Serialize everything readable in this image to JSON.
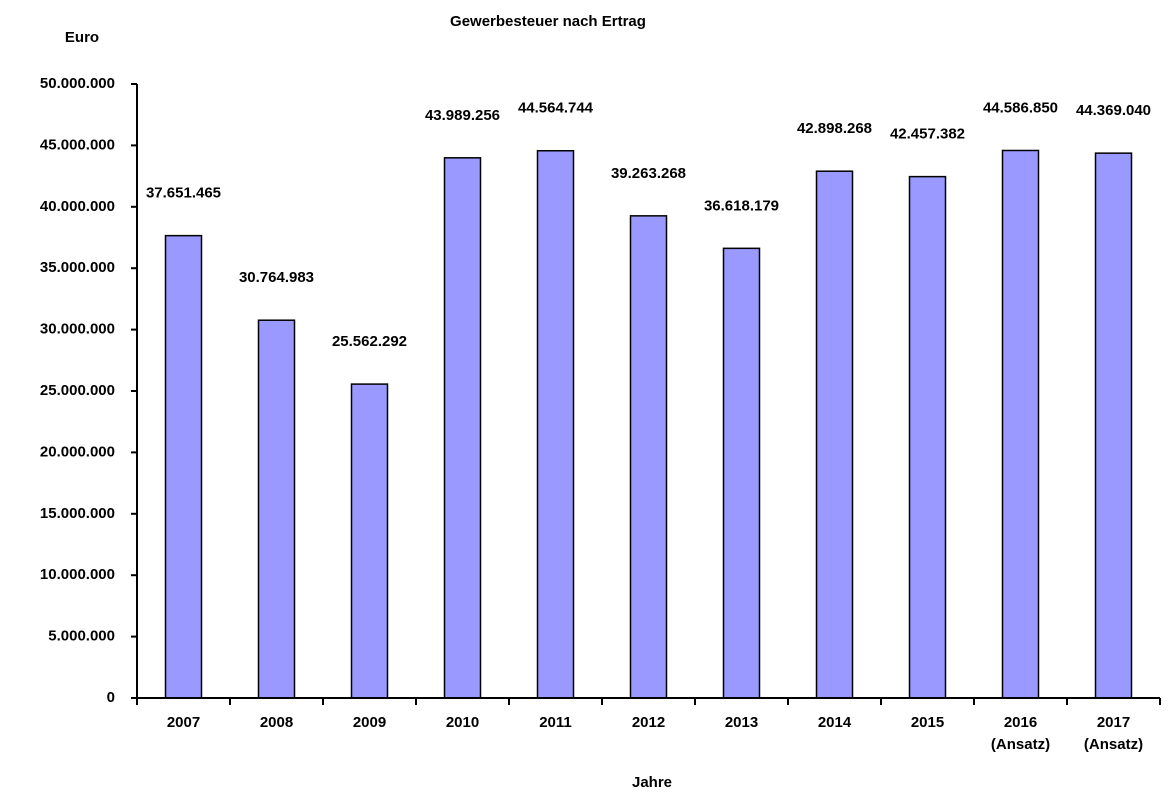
{
  "chart_data": {
    "type": "bar",
    "title": "Gewerbesteuer nach Ertrag",
    "y_label": "Euro",
    "x_label": "Jahre",
    "categories": [
      "2007",
      "2008",
      "2009",
      "2010",
      "2011",
      "2012",
      "2013",
      "2014",
      "2015",
      "2016 (Ansatz)",
      "2017 (Ansatz)"
    ],
    "values": [
      37651465,
      30764983,
      25562292,
      43989256,
      44564744,
      39263268,
      36618179,
      42898268,
      42457382,
      44586850,
      44369040
    ],
    "value_labels": [
      "37.651.465",
      "30.764.983",
      "25.562.292",
      "43.989.256",
      "44.564.744",
      "39.263.268",
      "36.618.179",
      "42.898.268",
      "42.457.382",
      "44.586.850",
      "44.369.040"
    ],
    "color": "#9999ff",
    "ylim": [
      0,
      50000000
    ],
    "yticks": [
      0,
      {
        "value": 5000000,
        "label": "5.000.000"
      },
      {
        "value": 10000000,
        "label": "10.000.000"
      },
      {
        "value": 15000000,
        "label": "15.000.000"
      },
      {
        "value": 20000000,
        "label": "20.000.000"
      },
      {
        "value": 25000000,
        "label": "25.000.000"
      },
      {
        "value": 30000000,
        "label": "30.000.000"
      },
      {
        "value": 35000000,
        "label": "35.000.000"
      },
      {
        "value": 40000000,
        "label": "40.000.000"
      },
      {
        "value": 45000000,
        "label": "45.000.000"
      },
      {
        "value": 50000000,
        "label": "50.000.000"
      }
    ],
    "grid": false
  }
}
